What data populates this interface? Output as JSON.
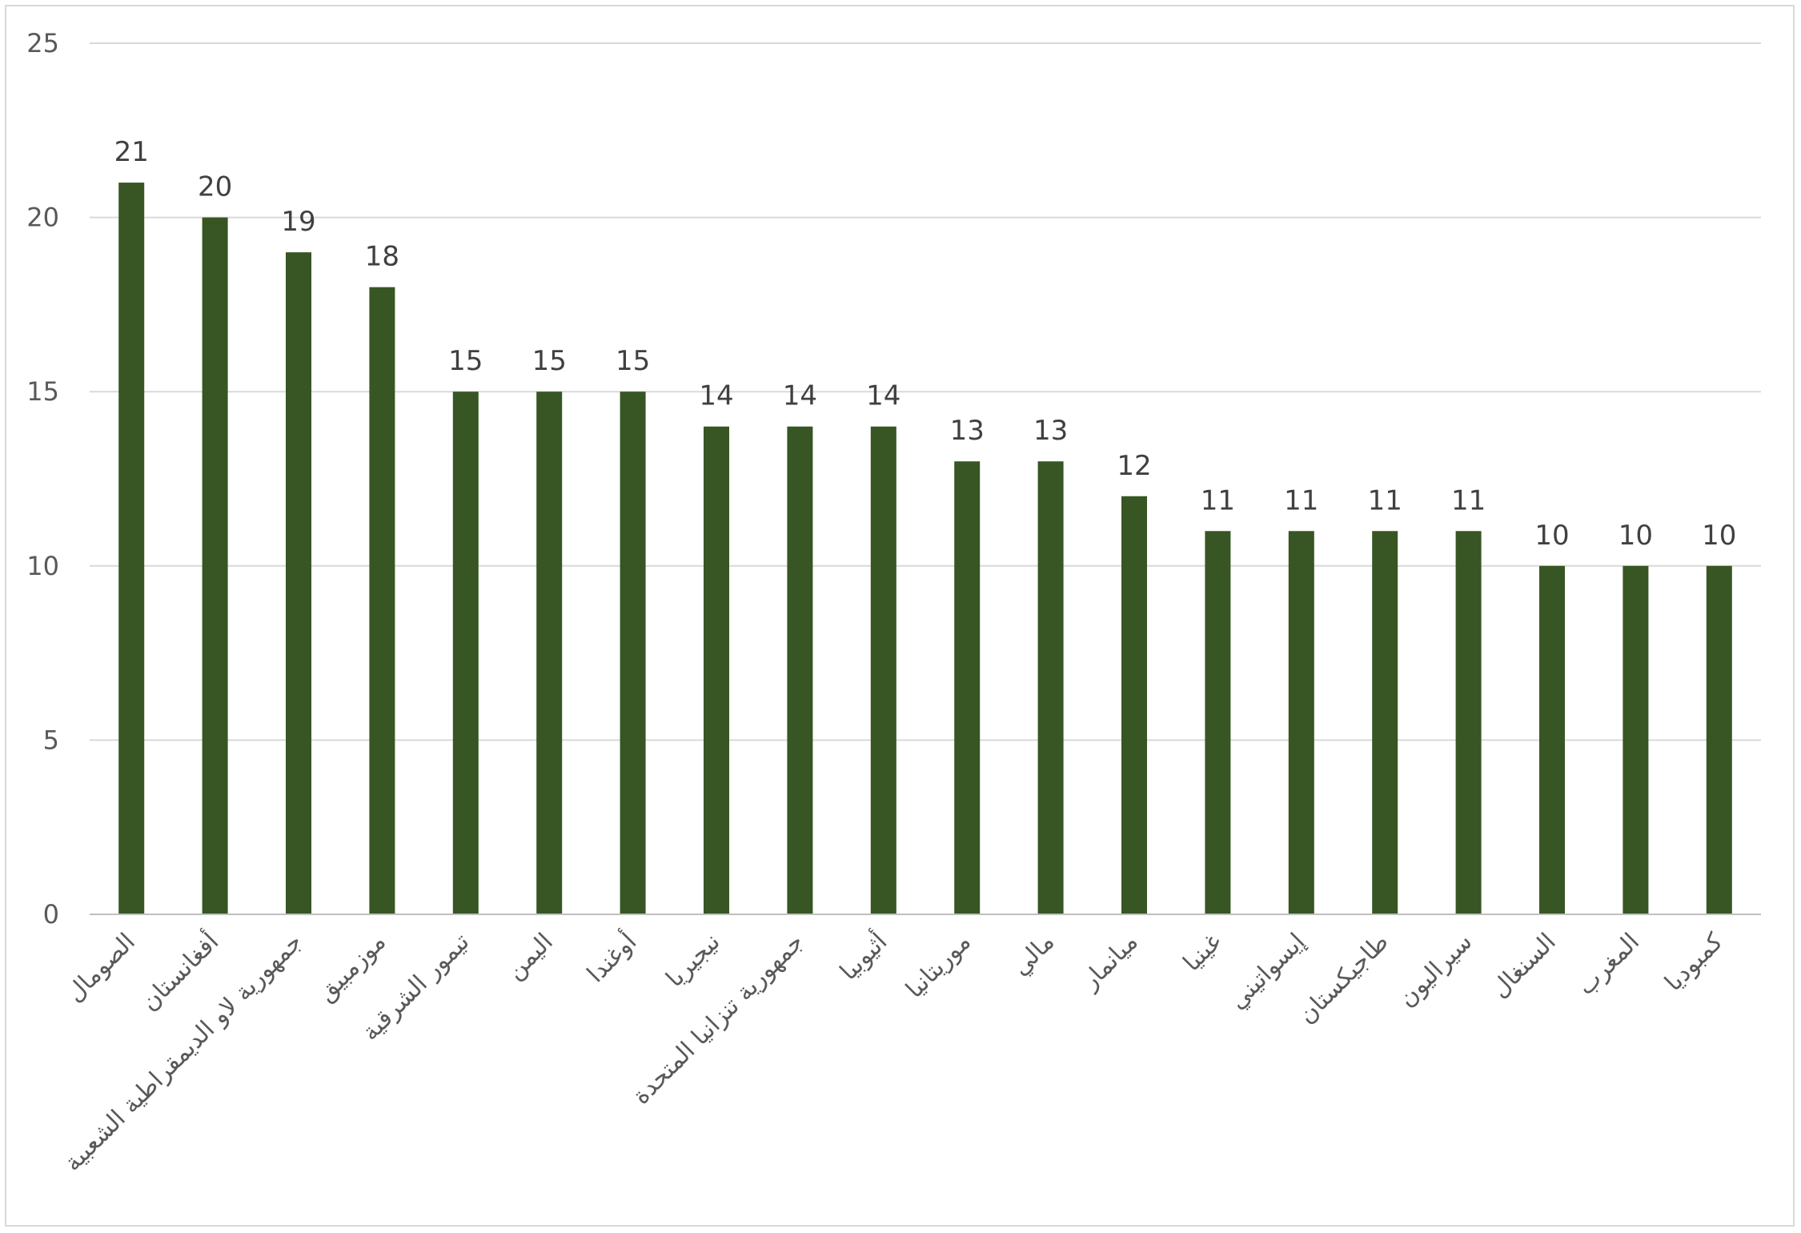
{
  "chart_data": {
    "type": "bar",
    "title": "",
    "xlabel": "",
    "ylabel": "",
    "ylim": [
      0,
      25
    ],
    "yticks": [
      0,
      5,
      10,
      15,
      20,
      25
    ],
    "grid": true,
    "bar_color": "#375623",
    "categories": [
      "الصومال",
      "أفغانستان",
      "جمهورية لاو الديمقراطية الشعبية",
      "موزمبيق",
      "تيمور الشرقية",
      "اليمن",
      "أوغندا",
      "نيجيريا",
      "جمهورية تنزانيا المتحدة",
      "أثيوبيا",
      "موريتانيا",
      "مالي",
      "ميانمار",
      "غينيا",
      "إيسواتيني",
      "طاجيكستان",
      "سيراليون",
      "السنغال",
      "المغرب",
      "كمبوديا"
    ],
    "values": [
      21,
      20,
      19,
      18,
      15,
      15,
      15,
      14,
      14,
      14,
      13,
      13,
      12,
      11,
      11,
      11,
      11,
      10,
      10,
      10
    ],
    "data_labels": [
      "21",
      "20",
      "19",
      "18",
      "15",
      "15",
      "15",
      "14",
      "14",
      "14",
      "13",
      "13",
      "12",
      "11",
      "11",
      "11",
      "11",
      "10",
      "10",
      "10"
    ]
  }
}
